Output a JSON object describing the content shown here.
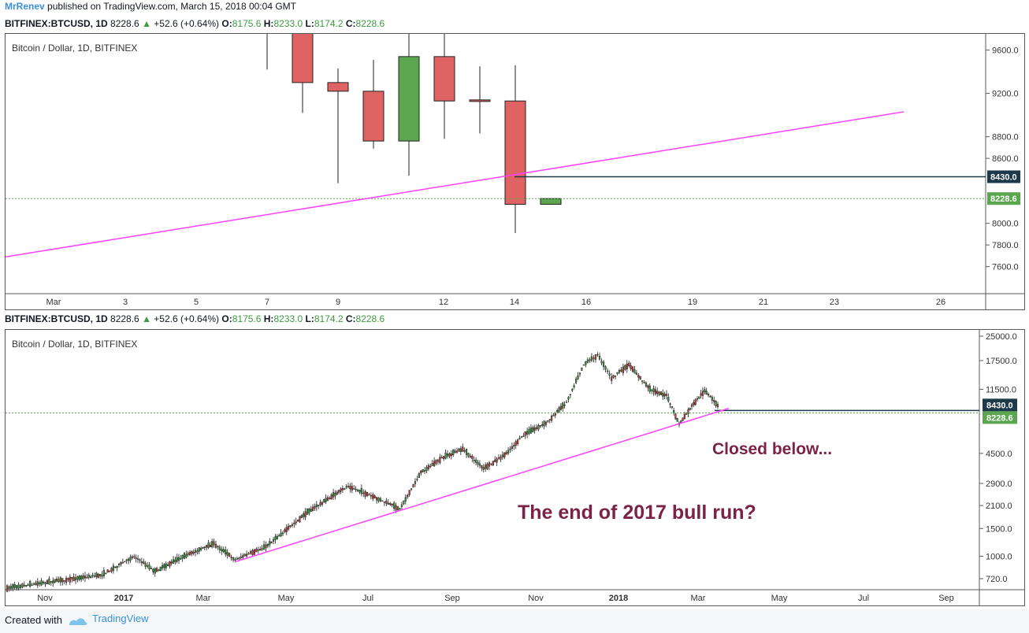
{
  "publish": {
    "author": "MrRenev",
    "text": "published on TradingView.com, March 15, 2018 00:04 GMT"
  },
  "ohlc": {
    "symbol": "BITFINEX:BTCUSD, 1D",
    "last": "8228.6",
    "arrow": "▲",
    "change": "+52.6 (+0.64%)",
    "o_label": "O:",
    "o": "8175.6",
    "h_label": "H:",
    "h": "8233.0",
    "l_label": "L:",
    "l": "8174.2",
    "c_label": "C:",
    "c": "8228.6"
  },
  "chart_title": "Bitcoin / Dollar, 1D, BITFINEX",
  "footer": {
    "created": "Created with",
    "brand": "TradingView"
  },
  "colors": {
    "up": "#5ba64f",
    "down": "#e06363",
    "trend": "#ff40ff",
    "level": "#1e3a4a",
    "last": "#5ba64f"
  },
  "chart_data": [
    {
      "type": "candlestick",
      "ylim": [
        7350,
        9750
      ],
      "y_ticks": [
        7600,
        7800,
        8000,
        8200,
        8400,
        8600,
        8800,
        9200,
        9600
      ],
      "y_tick_labels": [
        "7600.0",
        "7800.0",
        "8000.0",
        "",
        "",
        "8600.0",
        "8800.0",
        "9200.0",
        "9600.0"
      ],
      "x_labels": [
        "Mar",
        "3",
        "5",
        "7",
        "9",
        "12",
        "14",
        "16",
        "19",
        "21",
        "23",
        "26"
      ],
      "candles": [
        {
          "x": "Mar 7",
          "open": 9680,
          "high": 9750,
          "low": 9420,
          "close": 9750
        },
        {
          "x": "Mar 8",
          "open": 9900,
          "high": 9900,
          "low": 9020,
          "close": 9300
        },
        {
          "x": "Mar 9",
          "open": 9300,
          "high": 9430,
          "low": 8370,
          "close": 9220
        },
        {
          "x": "Mar 10",
          "open": 9220,
          "high": 9510,
          "low": 8690,
          "close": 8760
        },
        {
          "x": "Mar 11",
          "open": 8760,
          "high": 9750,
          "low": 8440,
          "close": 9540
        },
        {
          "x": "Mar 12",
          "open": 9540,
          "high": 9750,
          "low": 8780,
          "close": 9130
        },
        {
          "x": "Mar 13",
          "open": 9140,
          "high": 9450,
          "low": 8830,
          "close": 9130
        },
        {
          "x": "Mar 14",
          "open": 9130,
          "high": 9460,
          "low": 7910,
          "close": 8175
        },
        {
          "x": "Mar 15",
          "open": 8175.6,
          "high": 8233,
          "low": 8174.2,
          "close": 8228.6
        }
      ],
      "trendline": {
        "x": [
          "start",
          "Mar 25"
        ],
        "y": [
          7690,
          9030
        ]
      },
      "level": 8430.0,
      "level_label": "8430.0",
      "last_price": 8228.6,
      "last_label": "8228.6"
    },
    {
      "type": "candlestick-log",
      "ylim": [
        600,
        26000
      ],
      "y_ticks": [
        720,
        1000,
        1500,
        2100,
        2900,
        4500,
        11500,
        17500,
        25000
      ],
      "y_tick_labels": [
        "720.0",
        "1000.0",
        "1500.0",
        "2100.0",
        "2900.0",
        "4500.0",
        "11500.0",
        "17500.0",
        "25000.0"
      ],
      "x_labels": [
        "Nov",
        "2017",
        "Mar",
        "May",
        "Jul",
        "Sep",
        "Nov",
        "2018",
        "Mar",
        "May",
        "Jul",
        "Sep"
      ],
      "price_path": [
        [
          "Oct 2016",
          630
        ],
        [
          "Nov 2016",
          700
        ],
        [
          "Dec 2016",
          760
        ],
        [
          "Jan 2017",
          1000
        ],
        [
          "Jan 2017",
          800
        ],
        [
          "Feb 2017",
          1000
        ],
        [
          "Mar 2017",
          1200
        ],
        [
          "Mar 2017",
          950
        ],
        [
          "Apr 2017",
          1150
        ],
        [
          "May 2017",
          1900
        ],
        [
          "Jun 2017",
          2800
        ],
        [
          "Jul 2017",
          2300
        ],
        [
          "Jul 2017",
          2000
        ],
        [
          "Aug 2017",
          3400
        ],
        [
          "Aug 2017",
          4200
        ],
        [
          "Sep 2017",
          4800
        ],
        [
          "Sep 2017",
          3600
        ],
        [
          "Oct 2017",
          4400
        ],
        [
          "Oct 2017",
          6000
        ],
        [
          "Nov 2017",
          7000
        ],
        [
          "Nov 2017",
          9500
        ],
        [
          "Dec 2017",
          16500
        ],
        [
          "Dec 2017",
          19000
        ],
        [
          "Dec 2017",
          13500
        ],
        [
          "Jan 2018",
          16500
        ],
        [
          "Jan 2018",
          11500
        ],
        [
          "Feb 2018",
          10500
        ],
        [
          "Feb 2018",
          6900
        ],
        [
          "Feb 2018",
          9000
        ],
        [
          "Mar 2018",
          11300
        ],
        [
          "Mar 2018",
          9000
        ],
        [
          "Mar 2018",
          8228.6
        ]
      ],
      "trendline": {
        "x": [
          "Mar 2017",
          "Mar 2018"
        ],
        "y": [
          920,
          8700
        ]
      },
      "level": 8430.0,
      "level_label": "8430.0",
      "last_price": 8228.6,
      "last_label": "8228.6",
      "annotations": [
        "Closed below...",
        "The end of 2017 bull run?"
      ]
    }
  ]
}
